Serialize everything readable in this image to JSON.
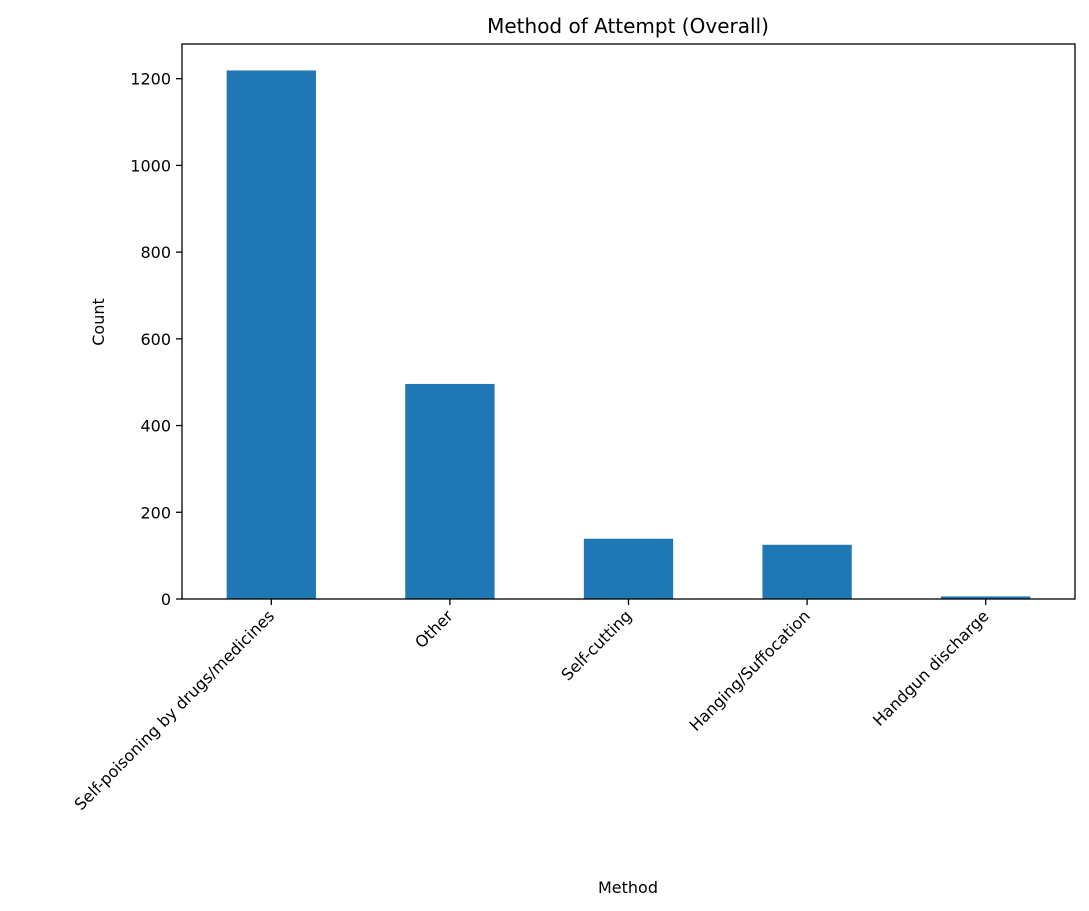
{
  "chart_data": {
    "type": "bar",
    "title": "Method of Attempt (Overall)",
    "xlabel": "Method",
    "ylabel": "Count",
    "categories": [
      "Self-poisoning by drugs/medicines",
      "Other",
      "Self-cutting",
      "Hanging/Suffocation",
      "Handgun discharge"
    ],
    "values": [
      1219,
      496,
      139,
      125,
      6
    ],
    "ylim": [
      0,
      1280
    ],
    "yticks": [
      0,
      200,
      400,
      600,
      800,
      1000,
      1200
    ],
    "grid": false,
    "legend": "none",
    "bar_color": "#1f77b4"
  }
}
